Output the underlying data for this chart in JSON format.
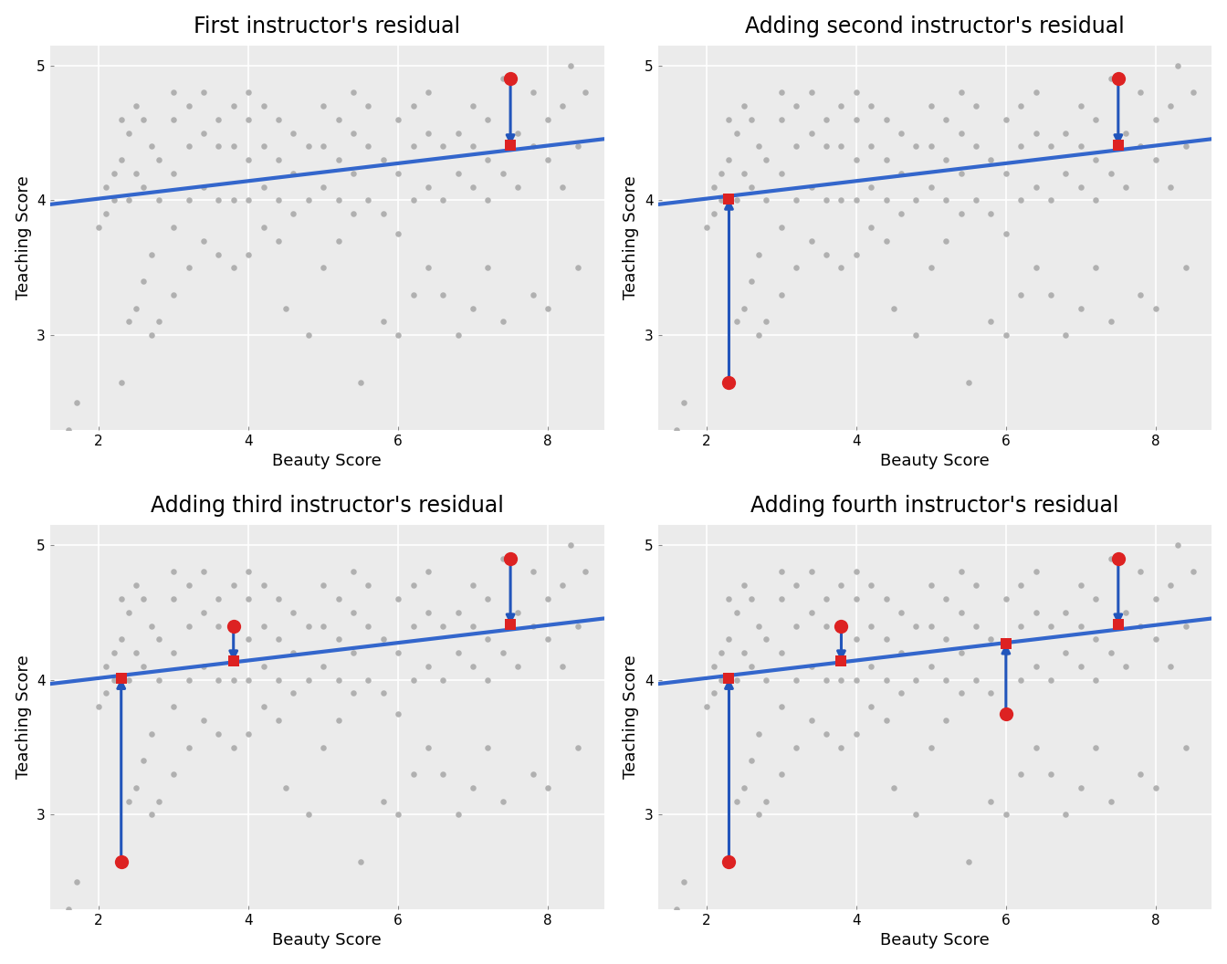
{
  "titles": [
    "First instructor's residual",
    "Adding second instructor's residual",
    "Adding third instructor's residual",
    "Adding fourth instructor's residual"
  ],
  "xlabel": "Beauty Score",
  "ylabel": "Teaching Score",
  "xlim": [
    1.35,
    8.75
  ],
  "ylim": [
    2.3,
    5.15
  ],
  "xticks": [
    2,
    4,
    6,
    8
  ],
  "yticks": [
    3,
    4,
    5
  ],
  "bg_color": "#EBEBEB",
  "grid_color": "#FFFFFF",
  "scatter_color": "#AAAAAA",
  "line_color": "#3366CC",
  "residual_line_color": "#2255BB",
  "point_color": "#DD2222",
  "square_color": "#DD2222",
  "reg_line": {
    "x0": 1.35,
    "y0": 3.97,
    "x1": 8.75,
    "y1": 4.455
  },
  "scatter_points": [
    [
      1.6,
      2.3
    ],
    [
      1.7,
      2.5
    ],
    [
      2.0,
      3.8
    ],
    [
      2.1,
      3.9
    ],
    [
      2.1,
      4.1
    ],
    [
      2.2,
      4.0
    ],
    [
      2.2,
      4.2
    ],
    [
      2.3,
      2.65
    ],
    [
      2.3,
      4.3
    ],
    [
      2.3,
      4.6
    ],
    [
      2.4,
      3.1
    ],
    [
      2.4,
      4.0
    ],
    [
      2.4,
      4.5
    ],
    [
      2.5,
      3.2
    ],
    [
      2.5,
      4.2
    ],
    [
      2.5,
      4.7
    ],
    [
      2.6,
      3.4
    ],
    [
      2.6,
      4.1
    ],
    [
      2.6,
      4.6
    ],
    [
      2.7,
      3.0
    ],
    [
      2.7,
      3.6
    ],
    [
      2.7,
      4.4
    ],
    [
      2.8,
      3.1
    ],
    [
      2.8,
      4.0
    ],
    [
      2.8,
      4.3
    ],
    [
      3.0,
      3.3
    ],
    [
      3.0,
      3.8
    ],
    [
      3.0,
      4.2
    ],
    [
      3.0,
      4.6
    ],
    [
      3.0,
      4.8
    ],
    [
      3.2,
      3.5
    ],
    [
      3.2,
      4.0
    ],
    [
      3.2,
      4.4
    ],
    [
      3.2,
      4.7
    ],
    [
      3.4,
      3.7
    ],
    [
      3.4,
      4.1
    ],
    [
      3.4,
      4.5
    ],
    [
      3.4,
      4.8
    ],
    [
      3.6,
      3.6
    ],
    [
      3.6,
      4.0
    ],
    [
      3.6,
      4.4
    ],
    [
      3.6,
      4.6
    ],
    [
      3.8,
      3.5
    ],
    [
      3.8,
      4.0
    ],
    [
      3.8,
      4.4
    ],
    [
      3.8,
      4.7
    ],
    [
      4.0,
      3.6
    ],
    [
      4.0,
      4.0
    ],
    [
      4.0,
      4.3
    ],
    [
      4.0,
      4.6
    ],
    [
      4.0,
      4.8
    ],
    [
      4.2,
      3.8
    ],
    [
      4.2,
      4.1
    ],
    [
      4.2,
      4.4
    ],
    [
      4.2,
      4.7
    ],
    [
      4.4,
      3.7
    ],
    [
      4.4,
      4.0
    ],
    [
      4.4,
      4.3
    ],
    [
      4.4,
      4.6
    ],
    [
      4.5,
      3.2
    ],
    [
      4.6,
      3.9
    ],
    [
      4.6,
      4.2
    ],
    [
      4.6,
      4.5
    ],
    [
      4.8,
      3.0
    ],
    [
      4.8,
      4.0
    ],
    [
      4.8,
      4.4
    ],
    [
      5.0,
      3.5
    ],
    [
      5.0,
      4.1
    ],
    [
      5.0,
      4.4
    ],
    [
      5.0,
      4.7
    ],
    [
      5.2,
      3.7
    ],
    [
      5.2,
      4.0
    ],
    [
      5.2,
      4.3
    ],
    [
      5.2,
      4.6
    ],
    [
      5.4,
      3.9
    ],
    [
      5.4,
      4.2
    ],
    [
      5.4,
      4.5
    ],
    [
      5.4,
      4.8
    ],
    [
      5.5,
      2.65
    ],
    [
      5.6,
      4.0
    ],
    [
      5.6,
      4.4
    ],
    [
      5.6,
      4.7
    ],
    [
      5.8,
      3.1
    ],
    [
      5.8,
      3.9
    ],
    [
      5.8,
      4.3
    ],
    [
      6.0,
      3.0
    ],
    [
      6.0,
      3.75
    ],
    [
      6.0,
      4.2
    ],
    [
      6.0,
      4.6
    ],
    [
      6.2,
      3.3
    ],
    [
      6.2,
      4.0
    ],
    [
      6.2,
      4.4
    ],
    [
      6.2,
      4.7
    ],
    [
      6.4,
      3.5
    ],
    [
      6.4,
      4.1
    ],
    [
      6.4,
      4.5
    ],
    [
      6.4,
      4.8
    ],
    [
      6.6,
      3.3
    ],
    [
      6.6,
      4.0
    ],
    [
      6.6,
      4.4
    ],
    [
      6.8,
      3.0
    ],
    [
      6.8,
      4.2
    ],
    [
      6.8,
      4.5
    ],
    [
      7.0,
      3.2
    ],
    [
      7.0,
      4.1
    ],
    [
      7.0,
      4.4
    ],
    [
      7.0,
      4.7
    ],
    [
      7.2,
      3.5
    ],
    [
      7.2,
      4.0
    ],
    [
      7.2,
      4.3
    ],
    [
      7.2,
      4.6
    ],
    [
      7.4,
      3.1
    ],
    [
      7.4,
      4.2
    ],
    [
      7.4,
      4.9
    ],
    [
      7.5,
      4.9
    ],
    [
      7.6,
      4.1
    ],
    [
      7.6,
      4.5
    ],
    [
      7.8,
      3.3
    ],
    [
      7.8,
      4.4
    ],
    [
      7.8,
      4.8
    ],
    [
      8.0,
      3.2
    ],
    [
      8.0,
      4.3
    ],
    [
      8.0,
      4.6
    ],
    [
      8.2,
      4.1
    ],
    [
      8.2,
      4.7
    ],
    [
      8.3,
      5.0
    ],
    [
      8.4,
      3.5
    ],
    [
      8.4,
      4.4
    ],
    [
      8.5,
      4.8
    ]
  ],
  "residuals": [
    {
      "x": 7.5,
      "y_actual": 4.9,
      "y_fitted": 4.41
    },
    {
      "x": 2.3,
      "y_actual": 2.65,
      "y_fitted": 4.01
    },
    {
      "x": 3.8,
      "y_actual": 4.4,
      "y_fitted": 4.14
    },
    {
      "x": 6.0,
      "y_actual": 3.75,
      "y_fitted": 4.27
    }
  ],
  "panels": [
    {
      "n_residuals": 1
    },
    {
      "n_residuals": 2
    },
    {
      "n_residuals": 3
    },
    {
      "n_residuals": 4
    }
  ],
  "title_fontsize": 17,
  "label_fontsize": 13,
  "tick_fontsize": 11
}
